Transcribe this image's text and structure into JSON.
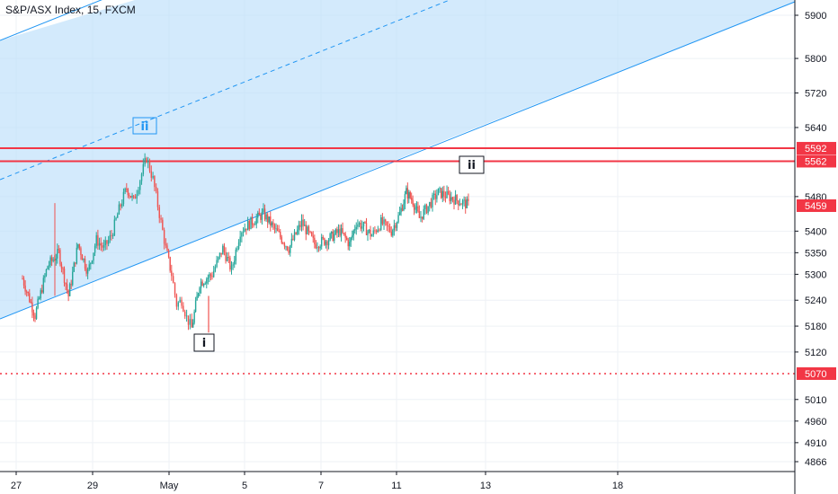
{
  "chart_data": {
    "type": "candlestick",
    "title": "S&P/ASX Index, 15, FXCM",
    "y_ticks": [
      5900,
      5800,
      5720,
      5640,
      5480,
      5400,
      5350,
      5300,
      5240,
      5180,
      5120,
      5010,
      4960,
      4910,
      4866
    ],
    "x_ticks": [
      "27",
      "29",
      "May",
      "5",
      "7",
      "11",
      "13",
      "18"
    ],
    "price_tags": [
      {
        "label": "5592",
        "value": 5592,
        "color": "#f23645"
      },
      {
        "label": "5562",
        "value": 5562,
        "color": "#f23645"
      },
      {
        "label": "5459",
        "value": 5459,
        "color": "#f23645"
      },
      {
        "label": "5070",
        "value": 5070,
        "color": "#f23645"
      }
    ],
    "horizontal_lines": [
      {
        "value": 5592,
        "style": "solid",
        "color": "#f23645"
      },
      {
        "value": 5562,
        "style": "solid",
        "color": "#f23645"
      },
      {
        "value": 5070,
        "style": "dotted",
        "color": "#f23645"
      }
    ],
    "wave_labels": [
      {
        "text": "ii",
        "style": "blue-box"
      },
      {
        "text": "ii",
        "style": "black-box"
      },
      {
        "text": "i",
        "style": "black-box"
      }
    ],
    "channel": {
      "fill": "#bbdefb",
      "line_color": "#2196f3"
    },
    "price_path": [
      [
        "27",
        5290
      ],
      [
        "27",
        5205
      ],
      [
        "27",
        5320
      ],
      [
        "28",
        5350
      ],
      [
        "28",
        5250
      ],
      [
        "28",
        5370
      ],
      [
        "28",
        5305
      ],
      [
        "29",
        5380
      ],
      [
        "29",
        5360
      ],
      [
        "29",
        5390
      ],
      [
        "29",
        5450
      ],
      [
        "29",
        5500
      ],
      [
        "30",
        5470
      ],
      [
        "30",
        5520
      ],
      [
        "30",
        5570
      ],
      [
        "30",
        5520
      ],
      [
        "30",
        5440
      ],
      [
        "30",
        5360
      ],
      [
        "May",
        5300
      ],
      [
        "May",
        5230
      ],
      [
        "May",
        5240
      ],
      [
        "May",
        5200
      ],
      [
        "May",
        5175
      ],
      [
        "3",
        5280
      ],
      [
        "3",
        5300
      ],
      [
        "4",
        5360
      ],
      [
        "4",
        5310
      ],
      [
        "4",
        5400
      ],
      [
        "5",
        5420
      ],
      [
        "5",
        5440
      ],
      [
        "5",
        5400
      ],
      [
        "6",
        5360
      ],
      [
        "6",
        5420
      ],
      [
        "6",
        5370
      ],
      [
        "7",
        5380
      ],
      [
        "7",
        5400
      ],
      [
        "8",
        5370
      ],
      [
        "8",
        5420
      ],
      [
        "9",
        5410
      ],
      [
        "9",
        5390
      ],
      [
        "10",
        5420
      ],
      [
        "10",
        5400
      ],
      [
        "11",
        5440
      ],
      [
        "11",
        5490
      ],
      [
        "11",
        5470
      ],
      [
        "11",
        5430
      ],
      [
        "12",
        5490
      ],
      [
        "12",
        5459
      ]
    ],
    "last_value": 5459
  }
}
